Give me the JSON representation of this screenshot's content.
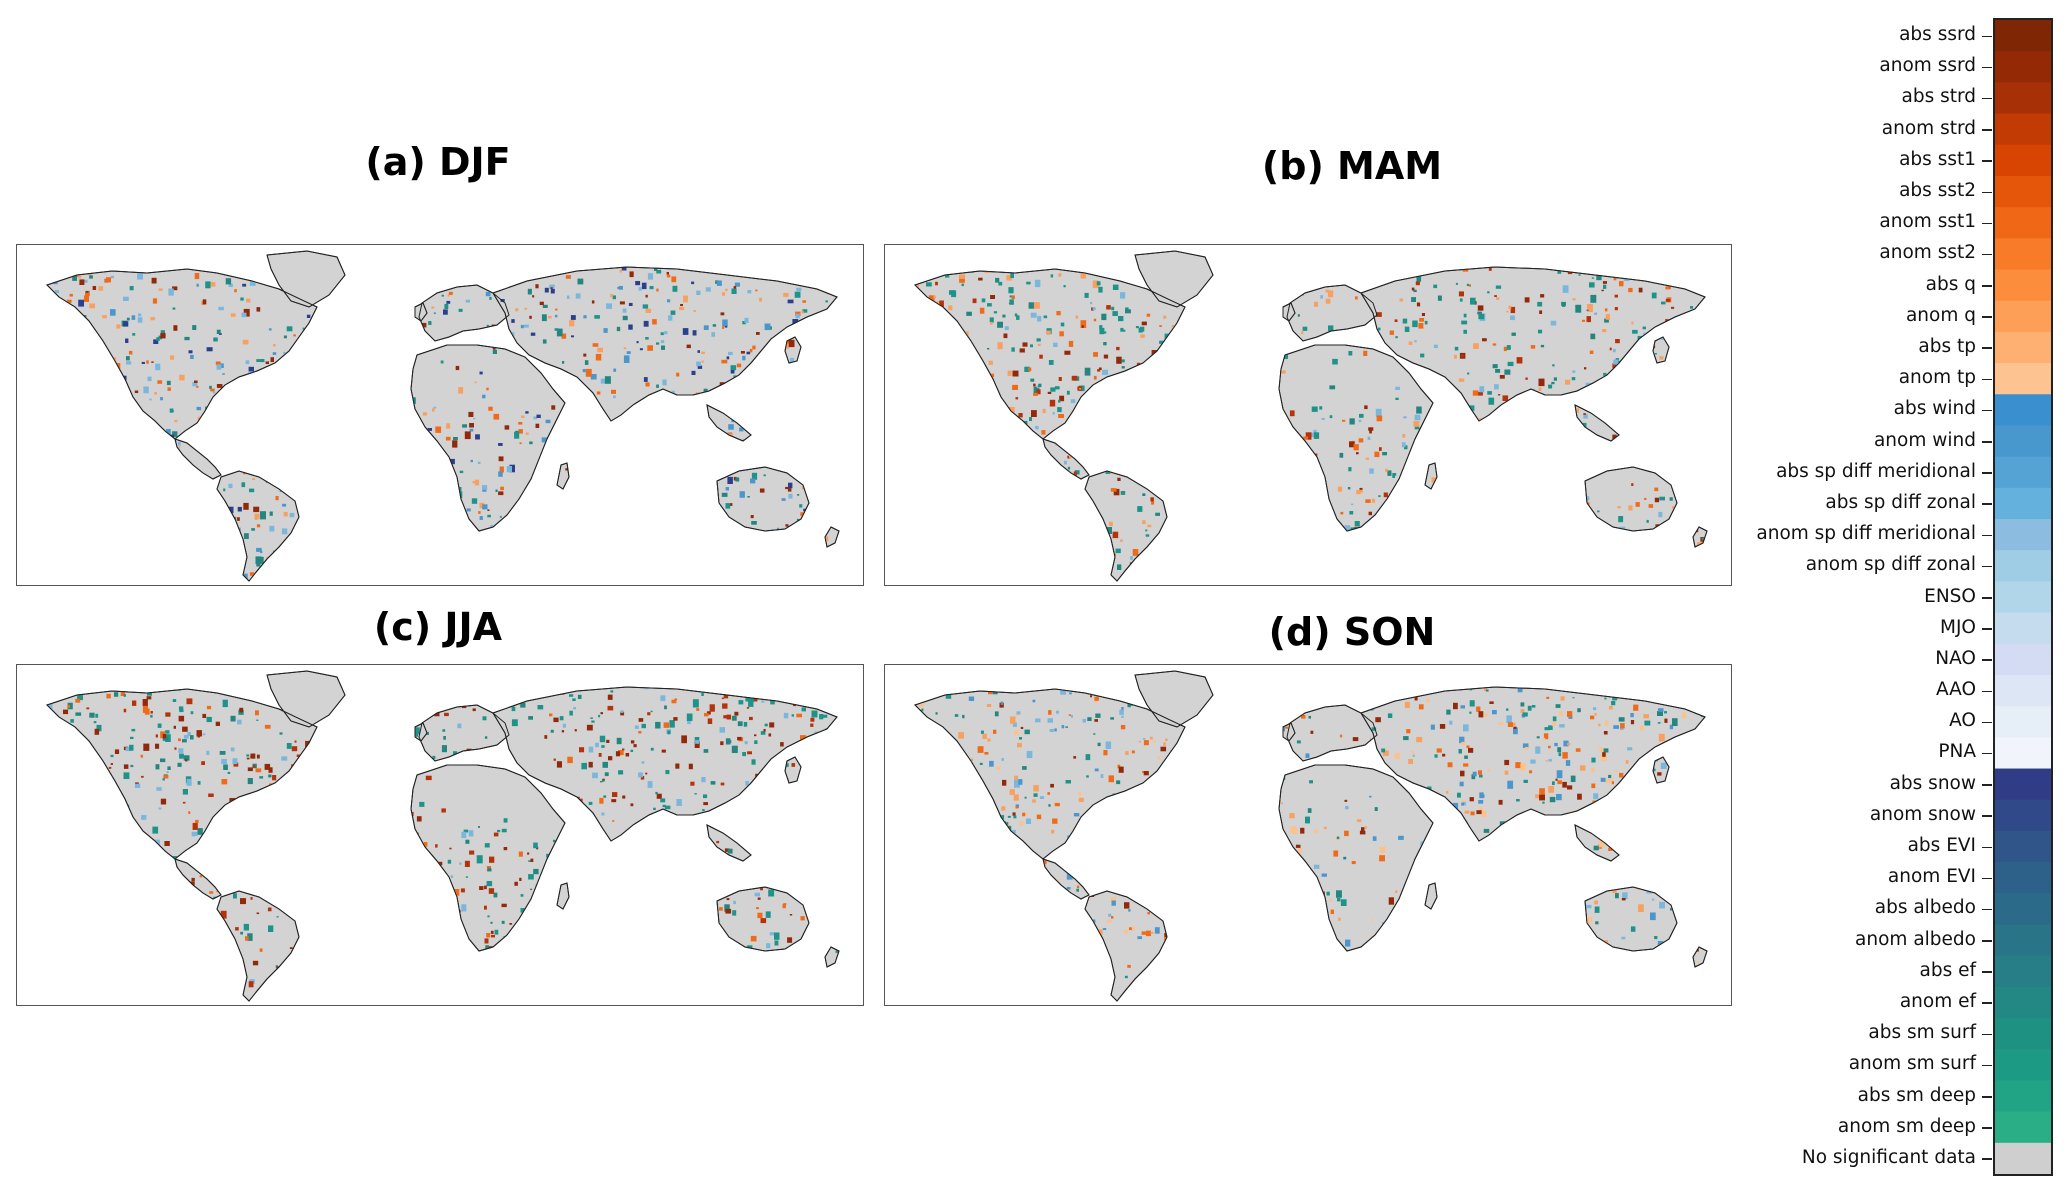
{
  "panels": [
    {
      "id": "a",
      "title": "(a) DJF",
      "dominant": [
        "#93290b",
        "#ef6b19",
        "#f7a060",
        "#4d96cc",
        "#7bb6dd",
        "#2c3f8c",
        "#24867f",
        "#1f938a"
      ]
    },
    {
      "id": "b",
      "title": "(b) MAM",
      "dominant": [
        "#93290b",
        "#b4330a",
        "#ef6b19",
        "#f7a060",
        "#7bb6dd",
        "#24867f",
        "#1f938a",
        "#1f938a"
      ]
    },
    {
      "id": "c",
      "title": "(c) JJA",
      "dominant": [
        "#93290b",
        "#93290b",
        "#b4330a",
        "#ef6b19",
        "#24867f",
        "#1f938a",
        "#1f938a",
        "#7bb6dd"
      ]
    },
    {
      "id": "d",
      "title": "(d) SON",
      "dominant": [
        "#93290b",
        "#ef6b19",
        "#f7a060",
        "#fbc28e",
        "#24867f",
        "#1f938a",
        "#7bb6dd",
        "#4d96cc"
      ]
    }
  ],
  "land_color": "#d3d3d3",
  "legend": {
    "items": [
      {
        "label": "abs ssrd",
        "color": "#7f2704"
      },
      {
        "label": "anom ssrd",
        "color": "#932a05"
      },
      {
        "label": "abs strd",
        "color": "#a83006"
      },
      {
        "label": "anom strd",
        "color": "#c23a04"
      },
      {
        "label": "abs sst1",
        "color": "#d84502"
      },
      {
        "label": "abs sst2",
        "color": "#e5560b"
      },
      {
        "label": "anom sst1",
        "color": "#f06716"
      },
      {
        "label": "anom sst2",
        "color": "#f77b28"
      },
      {
        "label": "abs q",
        "color": "#fb8d3d"
      },
      {
        "label": "anom q",
        "color": "#fd9f56"
      },
      {
        "label": "abs tp",
        "color": "#fdb072"
      },
      {
        "label": "anom tp",
        "color": "#fdc491"
      },
      {
        "label": "abs wind",
        "color": "#3a8fce"
      },
      {
        "label": "anom wind",
        "color": "#4898ce"
      },
      {
        "label": "abs sp diff meridional",
        "color": "#55a2d4"
      },
      {
        "label": "abs sp diff zonal",
        "color": "#65b1de"
      },
      {
        "label": "anom sp diff meridional",
        "color": "#8cbde0"
      },
      {
        "label": "anom sp diff zonal",
        "color": "#9fcde5"
      },
      {
        "label": "ENSO",
        "color": "#b1d6ea"
      },
      {
        "label": "MJO",
        "color": "#c5dcee"
      },
      {
        "label": "NAO",
        "color": "#d3dcf2"
      },
      {
        "label": "AAO",
        "color": "#dce6f4"
      },
      {
        "label": "AO",
        "color": "#e6eef8"
      },
      {
        "label": "PNA",
        "color": "#f1f4fb"
      },
      {
        "label": "abs snow",
        "color": "#313c86"
      },
      {
        "label": "anom snow",
        "color": "#304a89"
      },
      {
        "label": "abs EVI",
        "color": "#2f5589"
      },
      {
        "label": "anom EVI",
        "color": "#2e618a"
      },
      {
        "label": "abs albedo",
        "color": "#2b6b89"
      },
      {
        "label": "anom albedo",
        "color": "#2a7488"
      },
      {
        "label": "abs ef",
        "color": "#277e86"
      },
      {
        "label": "anom ef",
        "color": "#238884"
      },
      {
        "label": "abs sm surf",
        "color": "#1f9183"
      },
      {
        "label": "anom sm surf",
        "color": "#1d9a84"
      },
      {
        "label": "abs sm deep",
        "color": "#21a485"
      },
      {
        "label": "anom sm deep",
        "color": "#2aae86"
      },
      {
        "label": "No significant data",
        "color": "#cfcfcf"
      }
    ]
  }
}
